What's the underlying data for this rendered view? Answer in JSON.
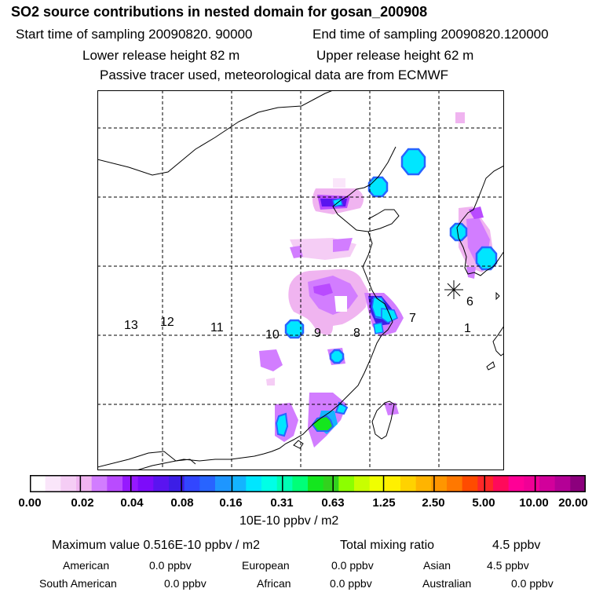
{
  "title": "SO2 source contributions in nested domain for gosan_200908",
  "header": {
    "start_label": "Start time of sampling 20090820. 90000",
    "end_label": "End time of sampling 20090820.120000",
    "lower_label": "Lower release height   82 m",
    "upper_label": "Upper release height   62 m",
    "tracer_note": "Passive tracer used, meteorological data are from ECMWF"
  },
  "map": {
    "receptor_label": "6",
    "zones": [
      "13",
      "12",
      "11",
      "10",
      "9",
      "8",
      "7",
      "1"
    ]
  },
  "colorbar": {
    "colors": [
      "#ffffff",
      "#fae6fa",
      "#f5cdf5",
      "#f0b4f0",
      "#d27dff",
      "#b94bff",
      "#9619ff",
      "#7d0cfa",
      "#5a14f0",
      "#3c1ee6",
      "#3246ff",
      "#2864ff",
      "#1e96ff",
      "#14b4ff",
      "#00e6ff",
      "#00ffe6",
      "#00ffb4",
      "#00ff78",
      "#14e61e",
      "#32d21e",
      "#8cff00",
      "#c8ff00",
      "#f0ff00",
      "#fff000",
      "#ffd200",
      "#ffb400",
      "#ff9600",
      "#ff7800",
      "#ff4b00",
      "#ff2828",
      "#ff0a5a",
      "#ff0096",
      "#f00096",
      "#d2009b",
      "#b40096",
      "#8c007d"
    ],
    "ticks": [
      "0.00",
      "0.02",
      "0.04",
      "0.08",
      "0.16",
      "0.31",
      "0.63",
      "1.25",
      "2.50",
      "5.00",
      "10.00",
      "20.00"
    ],
    "units": "10E-10 ppbv / m2"
  },
  "summary": {
    "max_label": "Maximum value  0.516E-10 ppbv / m2",
    "total_label": "Total mixing ratio",
    "total_value": "4.5 ppbv",
    "regions": [
      {
        "name": "American",
        "value": "0.0 ppbv"
      },
      {
        "name": "European",
        "value": "0.0 ppbv"
      },
      {
        "name": "Asian",
        "value": "4.5 ppbv"
      },
      {
        "name": "South American",
        "value": "0.0 ppbv"
      },
      {
        "name": "African",
        "value": "0.0 ppbv"
      },
      {
        "name": "Australian",
        "value": "0.0 ppbv"
      }
    ]
  }
}
